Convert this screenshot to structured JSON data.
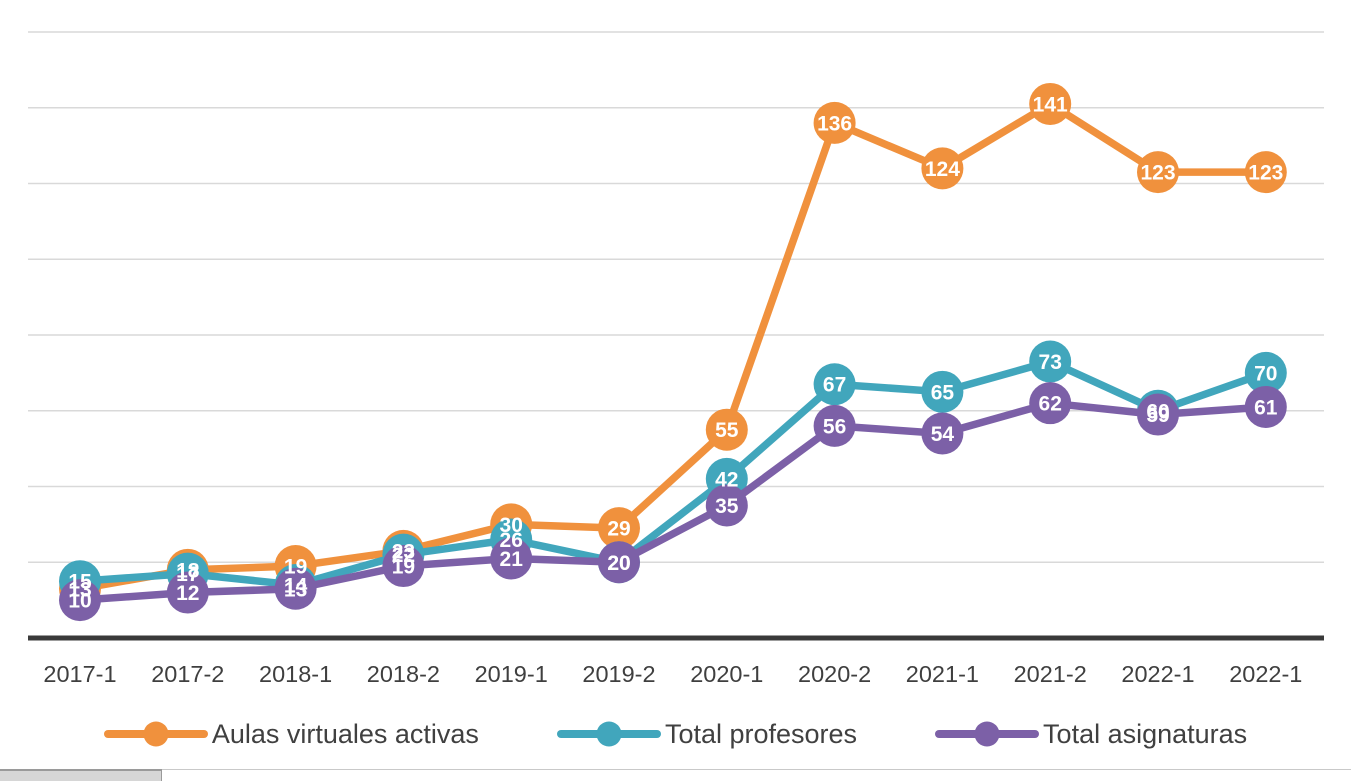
{
  "chart_data": {
    "type": "line",
    "title": "",
    "xlabel": "",
    "ylabel": "",
    "categories": [
      "2017-1",
      "2017-2",
      "2018-1",
      "2018-2",
      "2019-1",
      "2019-2",
      "2020-1",
      "2020-2",
      "2021-1",
      "2021-2",
      "2022-1",
      "2022-1"
    ],
    "series": [
      {
        "name": "Aulas virtuales activas",
        "color": "#F0913D",
        "values": [
          13,
          18,
          19,
          23,
          30,
          29,
          55,
          136,
          124,
          141,
          123,
          123
        ]
      },
      {
        "name": "Total profesores",
        "color": "#41A6BC",
        "values": [
          15,
          17,
          14,
          22,
          26,
          20,
          42,
          67,
          65,
          73,
          60,
          70
        ]
      },
      {
        "name": "Total asignaturas",
        "color": "#7C60A7",
        "values": [
          10,
          12,
          13,
          19,
          21,
          20,
          35,
          56,
          54,
          62,
          59,
          61
        ]
      }
    ],
    "ylim": [
      0,
      160
    ],
    "grid_step": 20,
    "grid_on": true,
    "y_tick_labels_visible": false,
    "data_label_position": "center",
    "legend_position": "bottom",
    "grid_color": "#D9D9D9",
    "axis_color": "#3A3A3A",
    "data_label_color": "#FFFFFF",
    "tick_label_color": "#3F3F3F"
  }
}
